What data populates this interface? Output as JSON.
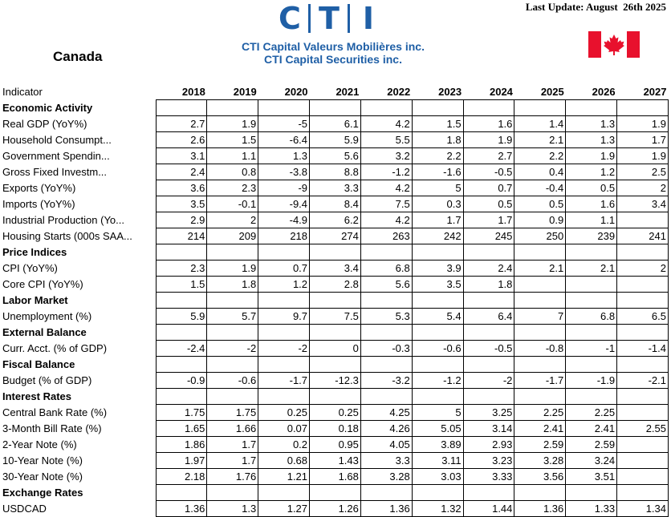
{
  "header": {
    "logo": [
      "C",
      "T",
      "I"
    ],
    "company_fr": "CTI Capital Valeurs Mobilières inc.",
    "company_en": "CTI Capital Securities inc.",
    "last_update": "Last Update: August  26th 2025",
    "country": "Canada"
  },
  "table": {
    "columns": [
      "Indicator",
      "2018",
      "2019",
      "2020",
      "2021",
      "2022",
      "2023",
      "2024",
      "2025",
      "2026",
      "2027"
    ],
    "rows": [
      {
        "label": "Economic Activity"
      },
      {
        "label": "Real GDP (YoY%)",
        "values": [
          2.7,
          1.9,
          -5,
          6.1,
          4.2,
          1.5,
          1.6,
          1.4,
          1.3,
          1.9
        ]
      },
      {
        "label": "Household Consumpt...",
        "values": [
          2.6,
          1.5,
          -6.4,
          5.9,
          5.5,
          1.8,
          1.9,
          2.1,
          1.3,
          1.7
        ]
      },
      {
        "label": "Government Spendin...",
        "values": [
          3.1,
          1.1,
          1.3,
          5.6,
          3.2,
          2.2,
          2.7,
          2.2,
          1.9,
          1.9
        ]
      },
      {
        "label": "Gross Fixed Investm...",
        "values": [
          2.4,
          0.8,
          -3.8,
          8.8,
          -1.2,
          -1.6,
          -0.5,
          0.4,
          1.2,
          2.5
        ]
      },
      {
        "label": "Exports (YoY%)",
        "values": [
          3.6,
          2.3,
          -9,
          3.3,
          4.2,
          5,
          0.7,
          -0.4,
          0.5,
          2
        ]
      },
      {
        "label": "Imports (YoY%)",
        "values": [
          3.5,
          -0.1,
          -9.4,
          8.4,
          7.5,
          0.3,
          0.5,
          0.5,
          1.6,
          3.4
        ]
      },
      {
        "label": "Industrial Production (Yo...",
        "values": [
          2.9,
          2,
          -4.9,
          6.2,
          4.2,
          1.7,
          1.7,
          0.9,
          1.1,
          null
        ]
      },
      {
        "label": "Housing Starts (000s SAA...",
        "values": [
          214,
          209,
          218,
          274,
          263,
          242,
          245,
          250,
          239,
          241
        ]
      },
      {
        "label": "Price Indices"
      },
      {
        "label": "CPI (YoY%)",
        "values": [
          2.3,
          1.9,
          0.7,
          3.4,
          6.8,
          3.9,
          2.4,
          2.1,
          2.1,
          2
        ]
      },
      {
        "label": "Core CPI (YoY%)",
        "values": [
          1.5,
          1.8,
          1.2,
          2.8,
          5.6,
          3.5,
          1.8,
          null,
          null,
          null
        ]
      },
      {
        "label": "Labor Market"
      },
      {
        "label": "Unemployment (%)",
        "values": [
          5.9,
          5.7,
          9.7,
          7.5,
          5.3,
          5.4,
          6.4,
          7,
          6.8,
          6.5
        ]
      },
      {
        "label": "External Balance"
      },
      {
        "label": "Curr. Acct. (% of GDP)",
        "values": [
          -2.4,
          -2,
          -2,
          0,
          -0.3,
          -0.6,
          -0.5,
          -0.8,
          -1,
          -1.4
        ]
      },
      {
        "label": "Fiscal Balance"
      },
      {
        "label": "Budget (% of GDP)",
        "values": [
          -0.9,
          -0.6,
          -1.7,
          -12.3,
          -3.2,
          -1.2,
          -2,
          -1.7,
          -1.9,
          -2.1
        ]
      },
      {
        "label": "Interest Rates"
      },
      {
        "label": "Central Bank Rate (%)",
        "values": [
          1.75,
          1.75,
          0.25,
          0.25,
          4.25,
          5,
          3.25,
          2.25,
          2.25,
          null
        ]
      },
      {
        "label": "3-Month Bill Rate (%)",
        "values": [
          1.65,
          1.66,
          0.07,
          0.18,
          4.26,
          5.05,
          3.14,
          2.41,
          2.41,
          2.55
        ]
      },
      {
        "label": "2-Year Note (%)",
        "values": [
          1.86,
          1.7,
          0.2,
          0.95,
          4.05,
          3.89,
          2.93,
          2.59,
          2.59,
          null
        ]
      },
      {
        "label": "10-Year Note (%)",
        "values": [
          1.97,
          1.7,
          0.68,
          1.43,
          3.3,
          3.11,
          3.23,
          3.28,
          3.24,
          null
        ]
      },
      {
        "label": "30-Year Note (%)",
        "values": [
          2.18,
          1.76,
          1.21,
          1.68,
          3.28,
          3.03,
          3.33,
          3.56,
          3.51,
          null
        ]
      },
      {
        "label": "Exchange Rates"
      },
      {
        "label": "USDCAD",
        "values": [
          1.36,
          1.3,
          1.27,
          1.26,
          1.36,
          1.32,
          1.44,
          1.36,
          1.33,
          1.34
        ]
      }
    ]
  }
}
